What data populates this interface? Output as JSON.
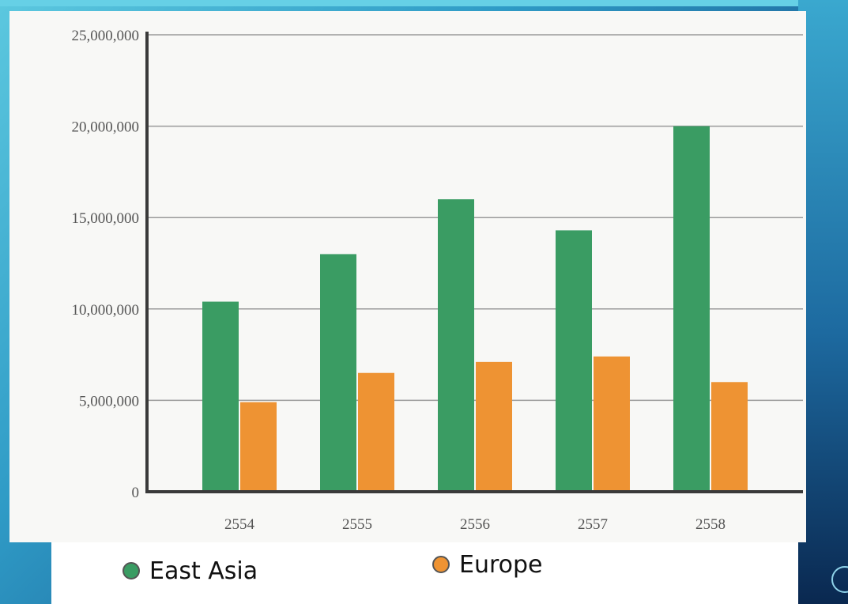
{
  "chart_data": {
    "type": "bar",
    "categories": [
      "2554",
      "2555",
      "2556",
      "2557",
      "2558"
    ],
    "series": [
      {
        "name": "East Asia",
        "color": "#3a9c63",
        "values": [
          10400000,
          13000000,
          16000000,
          14300000,
          20000000
        ]
      },
      {
        "name": "Europe",
        "color": "#ee9333",
        "values": [
          4900000,
          6500000,
          7100000,
          7400000,
          6000000
        ]
      }
    ],
    "yticks": [
      0,
      5000000,
      10000000,
      15000000,
      20000000,
      25000000
    ],
    "ytick_labels": [
      "0",
      "5,000,000",
      "10,000,000",
      "15,000,000",
      "20,000,000",
      "25,000,000"
    ],
    "ylim": [
      0,
      25000000
    ],
    "grid": true,
    "legend": "bottom"
  },
  "legend": {
    "items": [
      {
        "label": "East Asia",
        "color": "#3a9c63"
      },
      {
        "label": "Europe",
        "color": "#ee9333"
      }
    ]
  }
}
